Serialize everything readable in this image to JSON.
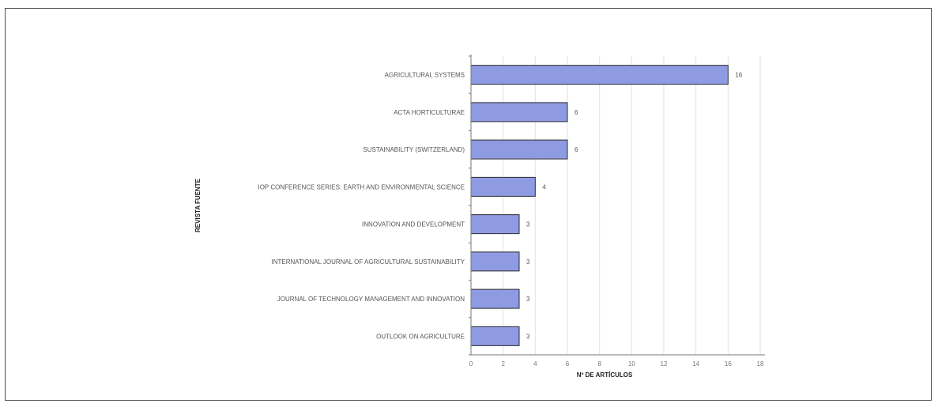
{
  "chart_data": {
    "type": "bar",
    "orientation": "horizontal",
    "categories": [
      "AGRICULTURAL SYSTEMS",
      "ACTA HORTICULTURAE",
      "SUSTAINABILITY (SWITZERLAND)",
      "IOP CONFERENCE SERIES: EARTH AND ENVIRONMENTAL SCIENCE",
      "INNOVATION AND DEVELOPMENT",
      "INTERNATIONAL JOURNAL OF AGRICULTURAL SUSTAINABILITY",
      "JOURNAL OF TECHNOLOGY MANAGEMENT AND INNOVATION",
      "OUTLOOK ON AGRICULTURE"
    ],
    "values": [
      16,
      6,
      6,
      4,
      3,
      3,
      3,
      3
    ],
    "value_labels": [
      "16",
      "6",
      "6",
      "4",
      "3",
      "3",
      "3",
      "3"
    ],
    "xlabel": "Nº DE ARTÍCULOS",
    "ylabel": "REVISTA FUENTE",
    "xlim": [
      0,
      18
    ],
    "x_ticks": [
      0,
      2,
      4,
      6,
      8,
      10,
      12,
      14,
      16,
      18
    ],
    "grid": "vertical",
    "bar_color": "#8e9be3",
    "bar_edge_color": "#2d2d2d"
  }
}
